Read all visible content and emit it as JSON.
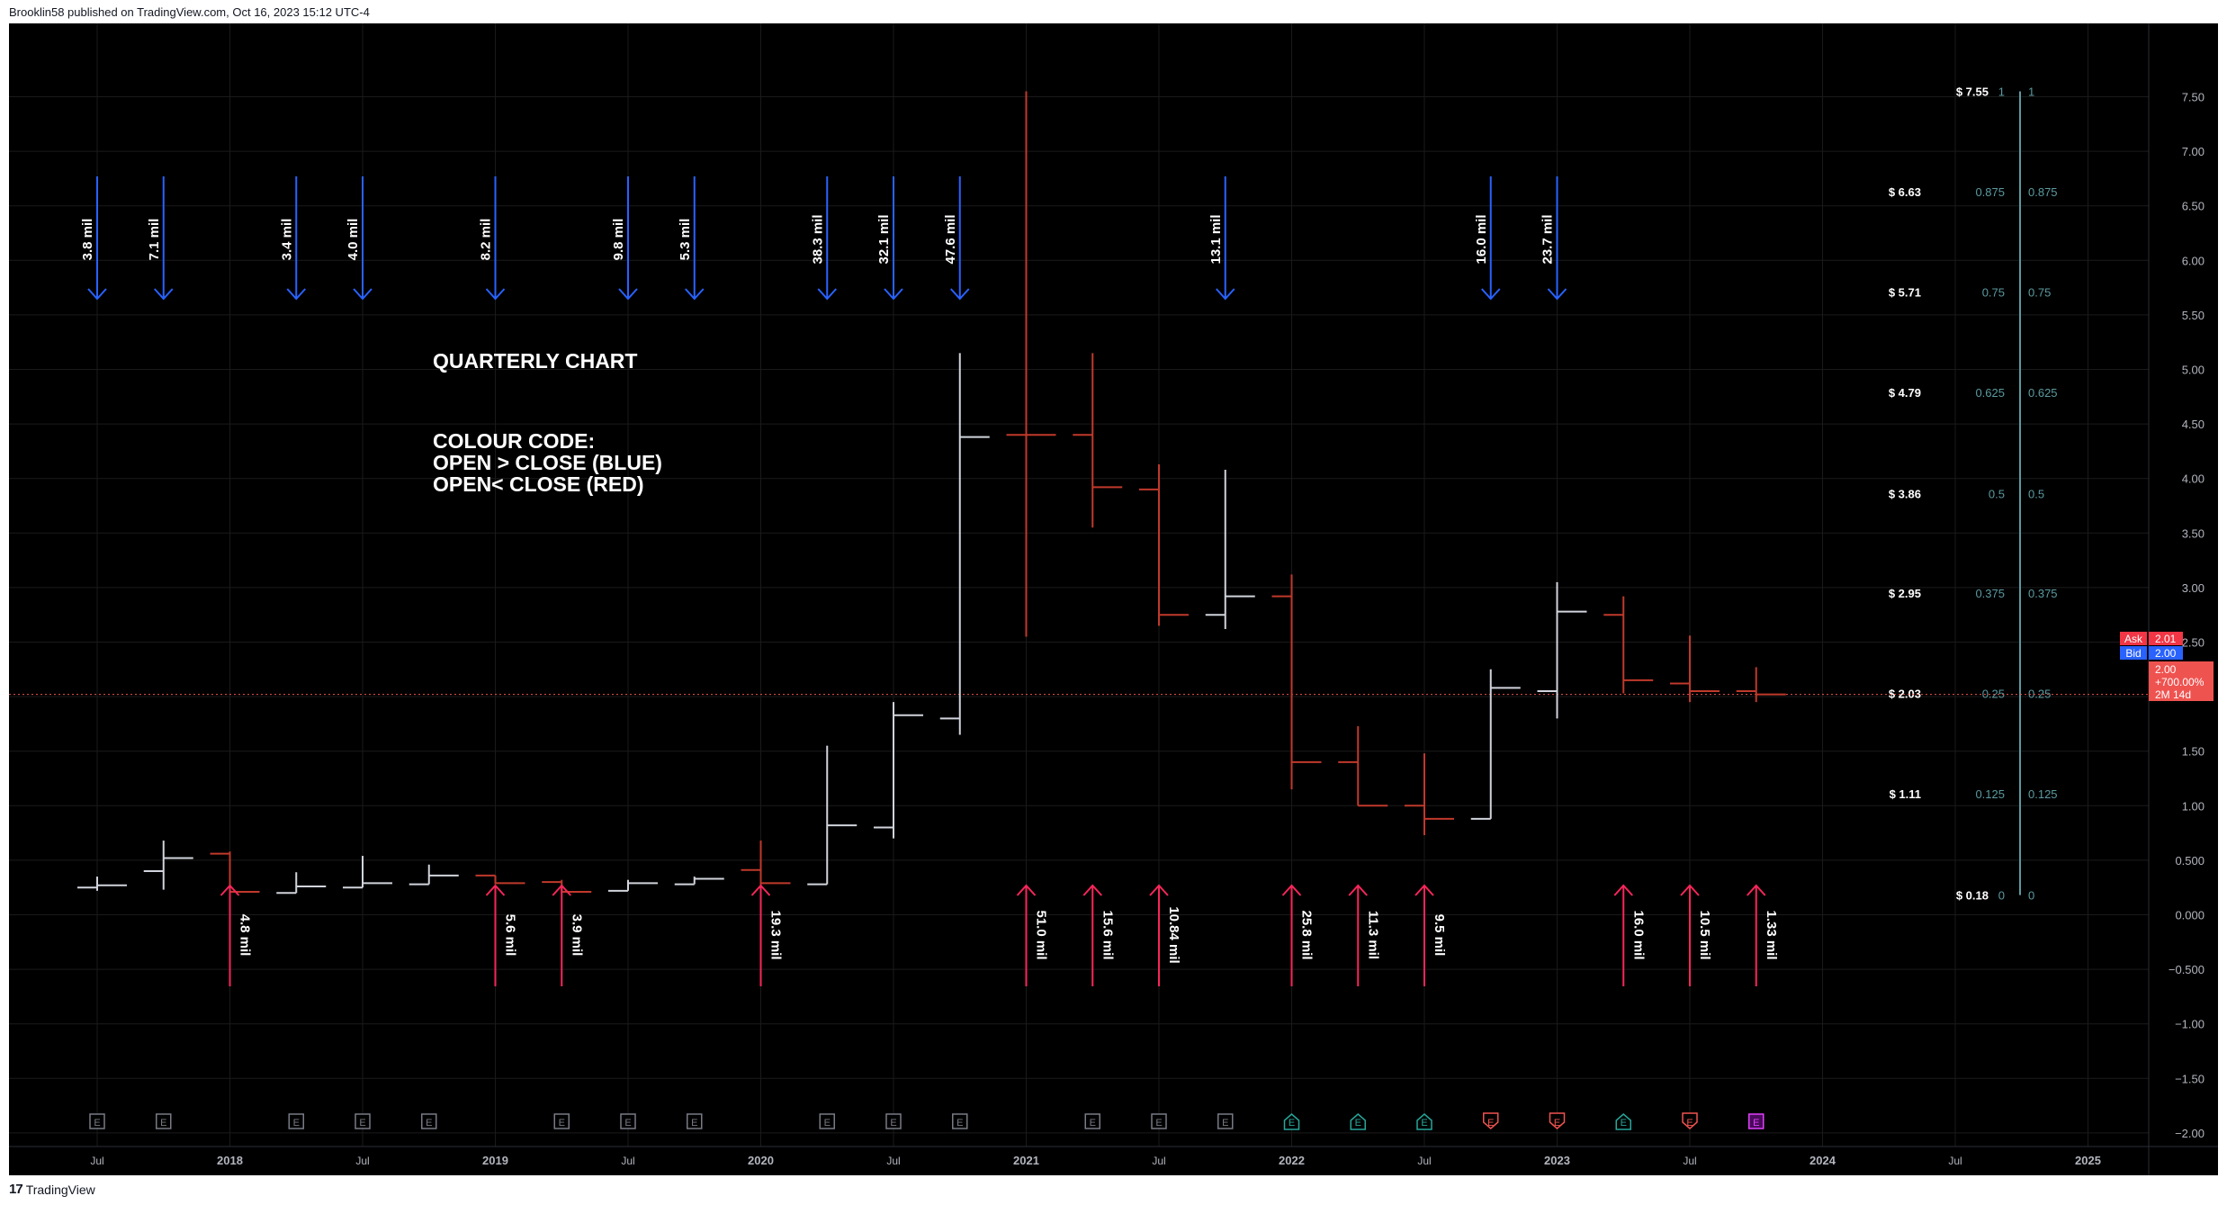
{
  "header": {
    "text": "Brooklin58 published on TradingView.com, Oct 16, 2023 15:12 UTC-4"
  },
  "footer": {
    "brand": "TradingView",
    "logo": "tradingview-logo-icon"
  },
  "colors": {
    "background": "#000000",
    "up": "#d1d4dc",
    "down": "#c0392b",
    "sell_arrow": "#2962ff",
    "buy_arrow": "#f7265a",
    "fib": "#5b9aa0",
    "price_line": "#ef5350"
  },
  "chart_data": {
    "type": "ohlc",
    "annotations": {
      "title": "QUARTERLY CHART",
      "legend_lines": [
        "COLOUR CODE:",
        "OPEN > CLOSE (BLUE)",
        "OPEN< CLOSE (RED)"
      ]
    },
    "x_ticks": [
      {
        "label": "Jul",
        "t": 2017.5
      },
      {
        "label": "2018",
        "t": 2018.0
      },
      {
        "label": "Jul",
        "t": 2018.5
      },
      {
        "label": "2019",
        "t": 2019.0
      },
      {
        "label": "Jul",
        "t": 2019.5
      },
      {
        "label": "2020",
        "t": 2020.0
      },
      {
        "label": "Jul",
        "t": 2020.5
      },
      {
        "label": "2021",
        "t": 2021.0
      },
      {
        "label": "Jul",
        "t": 2021.5
      },
      {
        "label": "2022",
        "t": 2022.0
      },
      {
        "label": "Jul",
        "t": 2022.5
      },
      {
        "label": "2023",
        "t": 2023.0
      },
      {
        "label": "Jul",
        "t": 2023.5
      },
      {
        "label": "2024",
        "t": 2024.0
      },
      {
        "label": "Jul",
        "t": 2024.5
      },
      {
        "label": "2025",
        "t": 2025.0
      }
    ],
    "y_ticks": [
      "7.50",
      "7.00",
      "6.50",
      "6.00",
      "5.50",
      "5.00",
      "4.50",
      "4.00",
      "3.50",
      "3.00",
      "2.50",
      "2.00",
      "1.50",
      "1.00",
      "0.500",
      "0.000",
      "−0.500",
      "−1.00",
      "−1.50",
      "−2.00"
    ],
    "ylim": [
      -2.45,
      7.85
    ],
    "xlim": [
      2017.17,
      2025.22
    ],
    "bars": [
      {
        "t": 2017.5,
        "o": 0.25,
        "h": 0.35,
        "l": 0.22,
        "c": 0.27,
        "dir": "up"
      },
      {
        "t": 2017.75,
        "o": 0.4,
        "h": 0.68,
        "l": 0.23,
        "c": 0.52,
        "dir": "up"
      },
      {
        "t": 2018.0,
        "o": 0.56,
        "h": 0.58,
        "l": 0.2,
        "c": 0.21,
        "dir": "down"
      },
      {
        "t": 2018.25,
        "o": 0.2,
        "h": 0.39,
        "l": 0.2,
        "c": 0.26,
        "dir": "up"
      },
      {
        "t": 2018.5,
        "o": 0.25,
        "h": 0.54,
        "l": 0.25,
        "c": 0.29,
        "dir": "up"
      },
      {
        "t": 2018.75,
        "o": 0.28,
        "h": 0.46,
        "l": 0.28,
        "c": 0.36,
        "dir": "up"
      },
      {
        "t": 2019.0,
        "o": 0.36,
        "h": 0.36,
        "l": 0.28,
        "c": 0.29,
        "dir": "down"
      },
      {
        "t": 2019.25,
        "o": 0.3,
        "h": 0.32,
        "l": 0.2,
        "c": 0.21,
        "dir": "down"
      },
      {
        "t": 2019.5,
        "o": 0.22,
        "h": 0.32,
        "l": 0.22,
        "c": 0.29,
        "dir": "up"
      },
      {
        "t": 2019.75,
        "o": 0.28,
        "h": 0.35,
        "l": 0.28,
        "c": 0.33,
        "dir": "up"
      },
      {
        "t": 2020.0,
        "o": 0.41,
        "h": 0.68,
        "l": 0.27,
        "c": 0.29,
        "dir": "down"
      },
      {
        "t": 2020.25,
        "o": 0.28,
        "h": 1.55,
        "l": 0.28,
        "c": 0.82,
        "dir": "up"
      },
      {
        "t": 2020.5,
        "o": 0.8,
        "h": 1.95,
        "l": 0.7,
        "c": 1.83,
        "dir": "up"
      },
      {
        "t": 2020.75,
        "o": 1.8,
        "h": 5.15,
        "l": 1.65,
        "c": 4.38,
        "dir": "up"
      },
      {
        "t": 2021.0,
        "o": 4.4,
        "h": 7.55,
        "l": 2.55,
        "c": 4.4,
        "dir": "down"
      },
      {
        "t": 2021.25,
        "o": 4.4,
        "h": 5.15,
        "l": 3.55,
        "c": 3.92,
        "dir": "down"
      },
      {
        "t": 2021.5,
        "o": 3.9,
        "h": 4.13,
        "l": 2.65,
        "c": 2.75,
        "dir": "down"
      },
      {
        "t": 2021.75,
        "o": 2.75,
        "h": 4.08,
        "l": 2.62,
        "c": 2.92,
        "dir": "up"
      },
      {
        "t": 2022.0,
        "o": 2.92,
        "h": 3.12,
        "l": 1.15,
        "c": 1.4,
        "dir": "down"
      },
      {
        "t": 2022.25,
        "o": 1.4,
        "h": 1.73,
        "l": 1.0,
        "c": 1.0,
        "dir": "down"
      },
      {
        "t": 2022.5,
        "o": 1.0,
        "h": 1.48,
        "l": 0.73,
        "c": 0.88,
        "dir": "down"
      },
      {
        "t": 2022.75,
        "o": 0.88,
        "h": 2.25,
        "l": 0.88,
        "c": 2.08,
        "dir": "up"
      },
      {
        "t": 2023.0,
        "o": 2.05,
        "h": 3.05,
        "l": 1.8,
        "c": 2.78,
        "dir": "up"
      },
      {
        "t": 2023.25,
        "o": 2.75,
        "h": 2.92,
        "l": 2.03,
        "c": 2.15,
        "dir": "down"
      },
      {
        "t": 2023.5,
        "o": 2.12,
        "h": 2.56,
        "l": 1.95,
        "c": 2.05,
        "dir": "down"
      },
      {
        "t": 2023.75,
        "o": 2.05,
        "h": 2.27,
        "l": 1.95,
        "c": 2.02,
        "dir": "down"
      }
    ],
    "sell_volumes": [
      {
        "t": 2017.5,
        "label": "3.8 mil"
      },
      {
        "t": 2017.75,
        "label": "7.1 mil"
      },
      {
        "t": 2018.25,
        "label": "3.4 mil"
      },
      {
        "t": 2018.5,
        "label": "4.0 mil"
      },
      {
        "t": 2019.0,
        "label": "8.2 mil"
      },
      {
        "t": 2019.5,
        "label": "9.8 mil"
      },
      {
        "t": 2019.75,
        "label": "5.3 mil"
      },
      {
        "t": 2020.25,
        "label": "38.3 mil"
      },
      {
        "t": 2020.5,
        "label": "32.1 mil"
      },
      {
        "t": 2020.75,
        "label": "47.6 mil"
      },
      {
        "t": 2021.75,
        "label": "13.1 mil"
      },
      {
        "t": 2022.75,
        "label": "16.0 mil"
      },
      {
        "t": 2023.0,
        "label": "23.7 mil"
      }
    ],
    "buy_volumes": [
      {
        "t": 2018.0,
        "label": "4.8 mil"
      },
      {
        "t": 2019.0,
        "label": "5.6 mil"
      },
      {
        "t": 2019.25,
        "label": "3.9 mil"
      },
      {
        "t": 2020.0,
        "label": "19.3 mil"
      },
      {
        "t": 2021.0,
        "label": "51.0 mil"
      },
      {
        "t": 2021.25,
        "label": "15.6 mil"
      },
      {
        "t": 2021.5,
        "label": "10.84 mil"
      },
      {
        "t": 2022.0,
        "label": "25.8 mil"
      },
      {
        "t": 2022.25,
        "label": "11.3 mil"
      },
      {
        "t": 2022.5,
        "label": "9.5 mil"
      },
      {
        "t": 2023.25,
        "label": "16.0 mil"
      },
      {
        "t": 2023.5,
        "label": "10.5 mil"
      },
      {
        "t": 2023.75,
        "label": "1.33 mil"
      }
    ],
    "fib_levels": [
      {
        "price": 7.55,
        "ratio": "1",
        "price_label": "$ 7.55"
      },
      {
        "price": 6.63,
        "ratio": "0.875",
        "price_label": "$ 6.63"
      },
      {
        "price": 5.71,
        "ratio": "0.75",
        "price_label": "$ 5.71"
      },
      {
        "price": 4.79,
        "ratio": "0.625",
        "price_label": "$ 4.79"
      },
      {
        "price": 3.86,
        "ratio": "0.5",
        "price_label": "$ 3.86"
      },
      {
        "price": 2.95,
        "ratio": "0.375",
        "price_label": "$ 2.95"
      },
      {
        "price": 2.03,
        "ratio": "0.25",
        "price_label": "$ 2.03"
      },
      {
        "price": 1.11,
        "ratio": "0.125",
        "price_label": "$ 1.11"
      },
      {
        "price": 0.18,
        "ratio": "0",
        "price_label": "$ 0.18"
      }
    ],
    "earnings_markers": [
      {
        "t": 2017.5,
        "kind": "past"
      },
      {
        "t": 2017.75,
        "kind": "past"
      },
      {
        "t": 2018.25,
        "kind": "past"
      },
      {
        "t": 2018.5,
        "kind": "past"
      },
      {
        "t": 2018.75,
        "kind": "past"
      },
      {
        "t": 2019.25,
        "kind": "past"
      },
      {
        "t": 2019.5,
        "kind": "past"
      },
      {
        "t": 2019.75,
        "kind": "past"
      },
      {
        "t": 2020.25,
        "kind": "past"
      },
      {
        "t": 2020.5,
        "kind": "past"
      },
      {
        "t": 2020.75,
        "kind": "past"
      },
      {
        "t": 2021.25,
        "kind": "past"
      },
      {
        "t": 2021.5,
        "kind": "past"
      },
      {
        "t": 2021.75,
        "kind": "past"
      },
      {
        "t": 2022.0,
        "kind": "beat"
      },
      {
        "t": 2022.25,
        "kind": "beat"
      },
      {
        "t": 2022.5,
        "kind": "beat"
      },
      {
        "t": 2022.75,
        "kind": "miss"
      },
      {
        "t": 2023.0,
        "kind": "miss"
      },
      {
        "t": 2023.25,
        "kind": "beat"
      },
      {
        "t": 2023.5,
        "kind": "miss"
      },
      {
        "t": 2023.75,
        "kind": "upcoming"
      }
    ],
    "earnings_letter": "E",
    "quote": {
      "ask_label": "Ask",
      "ask_value": "2.01",
      "bid_label": "Bid",
      "bid_value": "2.00",
      "last_price": "2.00",
      "change": "+700.00%",
      "countdown": "2M 14d",
      "price_line": 2.02
    }
  }
}
